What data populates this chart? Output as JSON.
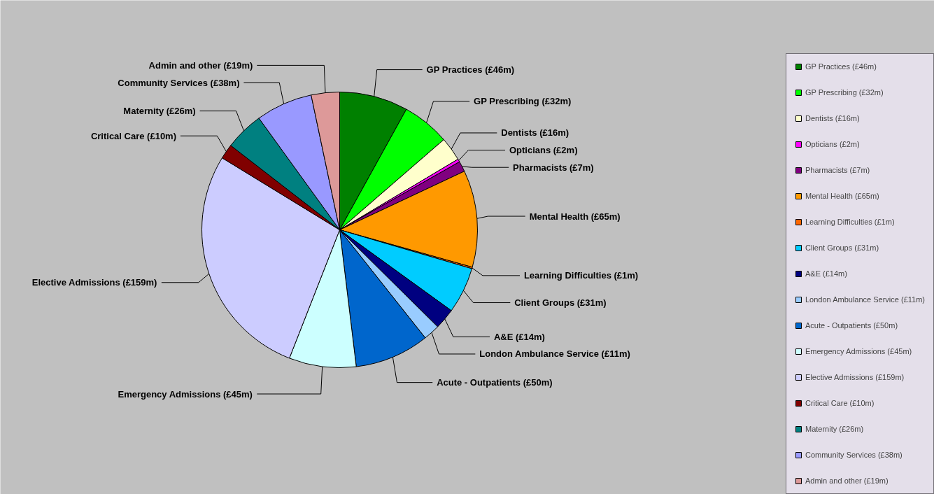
{
  "chart_data": {
    "type": "pie",
    "categories": [
      "GP Practices (£46m)",
      "GP Prescribing (£32m)",
      "Dentists (£16m)",
      "Opticians (£2m)",
      "Pharmacists (£7m)",
      "Mental Health (£65m)",
      "Learning Difficulties (£1m)",
      "Client Groups (£31m)",
      "A&E (£14m)",
      "London Ambulance Service (£11m)",
      "Acute - Outpatients (£50m)",
      "Emergency Admissions (£45m)",
      "Elective Admissions (£159m)",
      "Critical Care (£10m)",
      "Maternity (£26m)",
      "Community Services (£38m)",
      "Admin and other (£19m)"
    ],
    "values": [
      46,
      32,
      16,
      2,
      7,
      65,
      1,
      31,
      14,
      11,
      50,
      45,
      159,
      10,
      26,
      38,
      19
    ],
    "colors": [
      "#008000",
      "#00ff00",
      "#ffffcc",
      "#ff00ff",
      "#800080",
      "#ff9900",
      "#ff6600",
      "#00ccff",
      "#000080",
      "#99ccff",
      "#0066cc",
      "#ccffff",
      "#ccccff",
      "#800000",
      "#008080",
      "#9999ff",
      "#dd9999"
    ],
    "legend": "right"
  }
}
